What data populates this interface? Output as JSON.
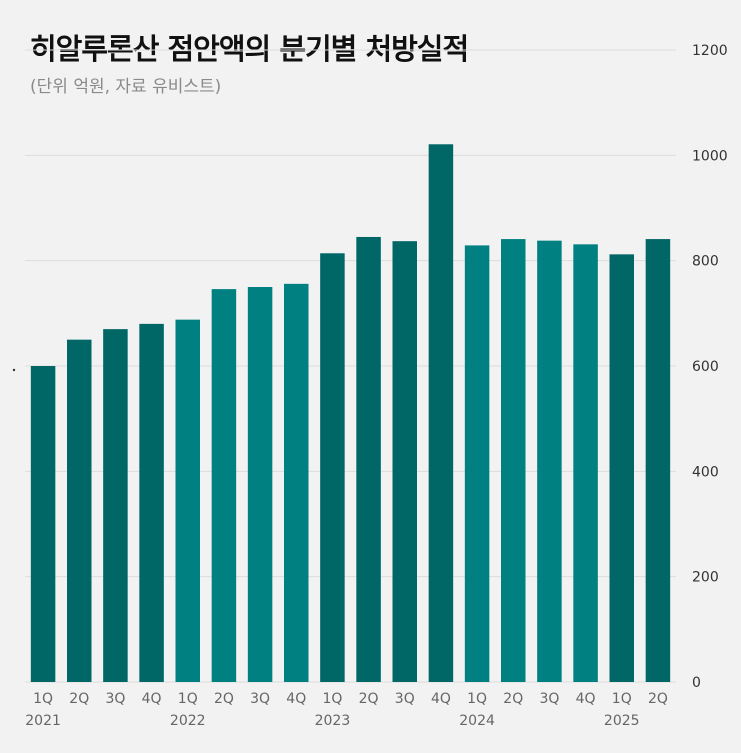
{
  "title": "히알루론산 점안액의 분기별 처방실적",
  "subtitle": "(단위 억원, 자료 유비스트)",
  "colors": {
    "dark": "#006666",
    "light": "#008080",
    "grid": "#dcdcdc",
    "background": "#f2f2f2"
  },
  "chart_data": {
    "type": "bar",
    "title": "히알루론산 점안액의 분기별 처방실적",
    "subtitle": "(단위 억원, 자료 유비스트)",
    "categories": [
      "1Q",
      "2Q",
      "3Q",
      "4Q",
      "1Q",
      "2Q",
      "3Q",
      "4Q",
      "1Q",
      "2Q",
      "3Q",
      "4Q",
      "1Q",
      "2Q",
      "3Q",
      "4Q",
      "1Q",
      "2Q"
    ],
    "years": [
      {
        "label": "2021",
        "start": 0
      },
      {
        "label": "2022",
        "start": 4
      },
      {
        "label": "2023",
        "start": 8
      },
      {
        "label": "2024",
        "start": 12
      },
      {
        "label": "2025",
        "start": 16
      }
    ],
    "values": [
      600,
      650,
      670,
      680,
      688,
      746,
      750,
      756,
      814,
      845,
      837,
      1021,
      829,
      841,
      838,
      831,
      812,
      841
    ],
    "bar_shades": [
      "dark",
      "dark",
      "dark",
      "dark",
      "light",
      "light",
      "light",
      "light",
      "dark",
      "dark",
      "dark",
      "dark",
      "light",
      "light",
      "light",
      "light",
      "dark",
      "dark"
    ],
    "yticks": [
      0,
      200,
      400,
      600,
      800,
      1000,
      1200
    ],
    "ylim": [
      0,
      1200
    ],
    "y_axis_side": "right",
    "grid": true
  }
}
